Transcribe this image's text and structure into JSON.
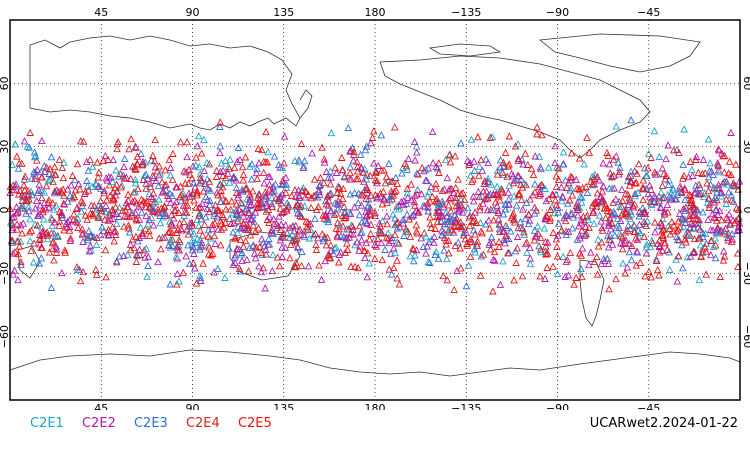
{
  "map": {
    "projection": "equirectangular",
    "central_longitude": 180,
    "lat_range": [
      -90,
      90
    ],
    "lon_range": [
      0,
      360
    ],
    "graticule_style": "dotted",
    "top_lon_labels": [
      "45",
      "90",
      "135",
      "180",
      "−135",
      "−90",
      "−45"
    ],
    "bottom_lon_labels": [
      "45",
      "90",
      "135",
      "180",
      "−135",
      "−90",
      "−45"
    ],
    "lat_labels": [
      "60",
      "30",
      "0",
      "−30",
      "−60"
    ],
    "marker_shape": "triangle-outline",
    "observation_band_lat": [
      -45,
      45
    ],
    "observation_count_approx": 2400
  },
  "legend": {
    "items": [
      {
        "label": "C2E1",
        "color": "#1ba6c8"
      },
      {
        "label": "C2E2",
        "color": "#b01ab0"
      },
      {
        "label": "C2E3",
        "color": "#2f6fd6"
      },
      {
        "label": "C2E4",
        "color": "#d02424"
      },
      {
        "label": "C2E5",
        "color": "#ee1111"
      }
    ]
  },
  "stamp": "UCARwet2.2024-01-22"
}
